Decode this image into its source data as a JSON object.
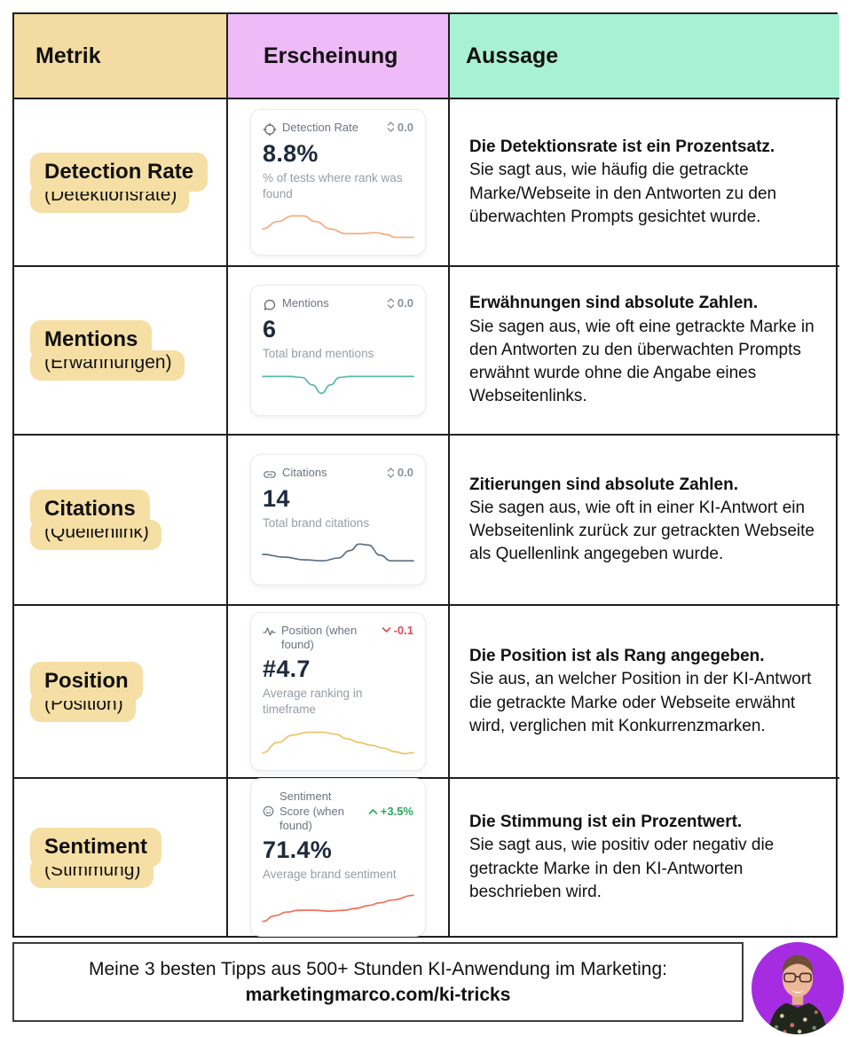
{
  "header": {
    "columns": [
      {
        "label": "Metrik",
        "bg": "#f3dba2"
      },
      {
        "label": "Erscheinung",
        "bg": "#eebaf7"
      },
      {
        "label": "Aussage",
        "bg": "#a9f1d4"
      }
    ]
  },
  "highlight_color": "#f6dfa4",
  "table": {
    "rows": [
      {
        "metric": {
          "name": "Detection Rate",
          "translation": "(Detektionsrate)"
        },
        "card": {
          "icon": "target-icon",
          "label": "Detection Rate",
          "delta": {
            "direction": "neutral",
            "value": "0.0",
            "color": "#8a919c"
          },
          "value": "8.8%",
          "description": "% of tests where rank was found",
          "spark_color": "#f6aa7d",
          "spark": [
            [
              0,
              22
            ],
            [
              10,
              14
            ],
            [
              20,
              8
            ],
            [
              27,
              8
            ],
            [
              35,
              14
            ],
            [
              45,
              22
            ],
            [
              55,
              27
            ],
            [
              65,
              27
            ],
            [
              75,
              26
            ],
            [
              82,
              28
            ],
            [
              88,
              31
            ],
            [
              100,
              31
            ]
          ]
        },
        "statement": {
          "lead": "Die Detektionsrate ist ein Prozentsatz.",
          "body": "Sie sagt aus, wie häufig die getrackte Marke/Webseite in den Antworten zu den überwachten Prompts gesichtet wurde."
        }
      },
      {
        "metric": {
          "name": "Mentions",
          "translation": "(Erwähnungen)"
        },
        "card": {
          "icon": "chat-icon",
          "label": "Mentions",
          "delta": {
            "direction": "neutral",
            "value": "0.0",
            "color": "#8a919c"
          },
          "value": "6",
          "description": "Total brand mentions",
          "spark_color": "#56b8ab",
          "spark": [
            [
              0,
              8
            ],
            [
              18,
              8
            ],
            [
              26,
              9
            ],
            [
              33,
              17
            ],
            [
              39,
              26
            ],
            [
              45,
              17
            ],
            [
              51,
              9
            ],
            [
              58,
              8
            ],
            [
              100,
              8
            ]
          ]
        },
        "statement": {
          "lead": "Erwähnungen sind absolute Zahlen.",
          "body": "Sie sagen aus, wie oft eine getrackte Marke in den Antworten zu den überwachten Prompts erwähnt wurde ohne die Angabe eines Webseitenlinks."
        }
      },
      {
        "metric": {
          "name": "Citations",
          "translation": "(Quellenlink)"
        },
        "card": {
          "icon": "link-icon",
          "label": "Citations",
          "delta": {
            "direction": "neutral",
            "value": "0.0",
            "color": "#8a919c"
          },
          "value": "14",
          "description": "Total brand citations",
          "spark_color": "#5b7083",
          "spark": [
            [
              0,
              17
            ],
            [
              14,
              20
            ],
            [
              28,
              23
            ],
            [
              40,
              24
            ],
            [
              50,
              21
            ],
            [
              58,
              13
            ],
            [
              64,
              6
            ],
            [
              70,
              7
            ],
            [
              78,
              18
            ],
            [
              85,
              24
            ],
            [
              100,
              24
            ]
          ]
        },
        "statement": {
          "lead": "Zitierungen sind absolute Zahlen.",
          "body": "Sie sagen aus, wie oft in einer KI-Antwort ein Webseitenlink zurück zur getrackten Webseite als Quellenlink angegeben wurde."
        }
      },
      {
        "metric": {
          "name": "Position",
          "translation": "(Position)"
        },
        "card": {
          "icon": "pulse-icon",
          "label": "Position (when found)",
          "delta": {
            "direction": "down",
            "value": "-0.1",
            "color": "#e5484d"
          },
          "value": "#4.7",
          "description": "Average ranking in timeframe",
          "spark_color": "#ecc368",
          "spark": [
            [
              0,
              31
            ],
            [
              10,
              20
            ],
            [
              20,
              12
            ],
            [
              30,
              9
            ],
            [
              40,
              9
            ],
            [
              48,
              11
            ],
            [
              56,
              16
            ],
            [
              64,
              20
            ],
            [
              72,
              23
            ],
            [
              80,
              26
            ],
            [
              88,
              30
            ],
            [
              94,
              32
            ],
            [
              100,
              31
            ]
          ]
        },
        "statement": {
          "lead": "Die Position ist als Rang angegeben.",
          "body": "Sie aus, an welcher Position in der KI-Antwort die getrackte Marke oder Webseite erwähnt wird, verglichen mit Konkurrenzmarken."
        }
      },
      {
        "metric": {
          "name": "Sentiment",
          "translation": "(Stimmung)"
        },
        "card": {
          "icon": "smiley-icon",
          "label": "Sentiment Score (when found)",
          "delta": {
            "direction": "up",
            "value": "+3.5%",
            "color": "#2aa75f"
          },
          "value": "71.4%",
          "description": "Average brand sentiment",
          "spark_color": "#f2705c",
          "spark": [
            [
              0,
              34
            ],
            [
              8,
              28
            ],
            [
              16,
              24
            ],
            [
              24,
              22
            ],
            [
              34,
              22
            ],
            [
              44,
              23
            ],
            [
              54,
              22
            ],
            [
              62,
              20
            ],
            [
              70,
              17
            ],
            [
              78,
              14
            ],
            [
              86,
              11
            ],
            [
              100,
              6
            ]
          ]
        },
        "statement": {
          "lead": "Die Stimmung ist ein Prozentwert.",
          "body": "Sie sagt aus, wie positiv oder negativ die getrackte Marke in den KI-Antworten beschrieben wird."
        }
      }
    ]
  },
  "footer": {
    "line1": "Meine 3 besten Tipps aus 500+ Stunden KI-Anwendung im Marketing:",
    "line2": "marketingmarco.com/ki-tricks",
    "avatar_bg": "#a62ce2"
  }
}
